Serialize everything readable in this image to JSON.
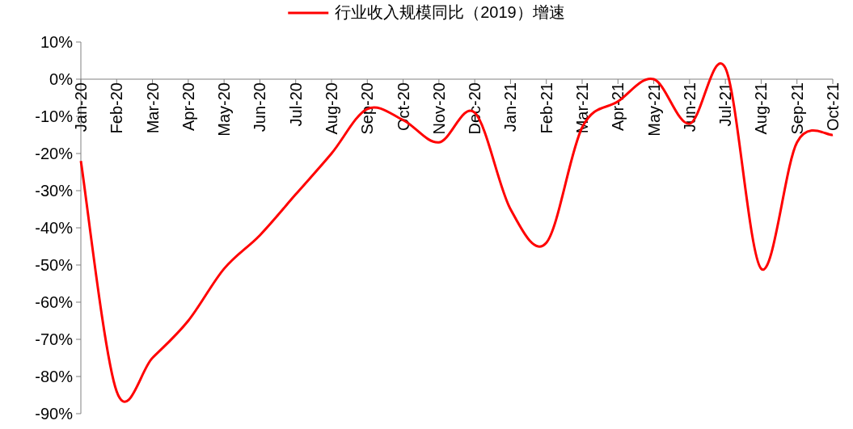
{
  "chart_data": {
    "type": "line",
    "categories": [
      "Jan-20",
      "Feb-20",
      "Mar-20",
      "Apr-20",
      "May-20",
      "Jun-20",
      "Jul-20",
      "Aug-20",
      "Sep-20",
      "Oct-20",
      "Nov-20",
      "Dec-20",
      "Jan-21",
      "Feb-21",
      "Mar-21",
      "Apr-21",
      "May-21",
      "Jun-21",
      "Jul-21",
      "Aug-21",
      "Sep-21",
      "Oct-21"
    ],
    "series": [
      {
        "name": "行业收入规模同比（2019）增速",
        "color": "#ff0000",
        "values": [
          -22,
          -84,
          -75,
          -65,
          -51,
          -42,
          -31,
          -20,
          -8,
          -11,
          -17,
          -9,
          -35,
          -44,
          -13,
          -6,
          0,
          -12,
          3,
          -51,
          -17,
          -15
        ]
      }
    ],
    "ylim": [
      -90,
      10
    ],
    "yticks": [
      {
        "value": 10,
        "label": "10%"
      },
      {
        "value": 0,
        "label": "0%"
      },
      {
        "value": -10,
        "label": "-10%"
      },
      {
        "value": -20,
        "label": "-20%"
      },
      {
        "value": -30,
        "label": "-30%"
      },
      {
        "value": -40,
        "label": "-40%"
      },
      {
        "value": -50,
        "label": "-50%"
      },
      {
        "value": -60,
        "label": "-60%"
      },
      {
        "value": -70,
        "label": "-70%"
      },
      {
        "value": -80,
        "label": "-80%"
      },
      {
        "value": -90,
        "label": "-90%"
      }
    ],
    "legend": "top",
    "grid": false,
    "marker": "none",
    "line_style": "solid"
  }
}
